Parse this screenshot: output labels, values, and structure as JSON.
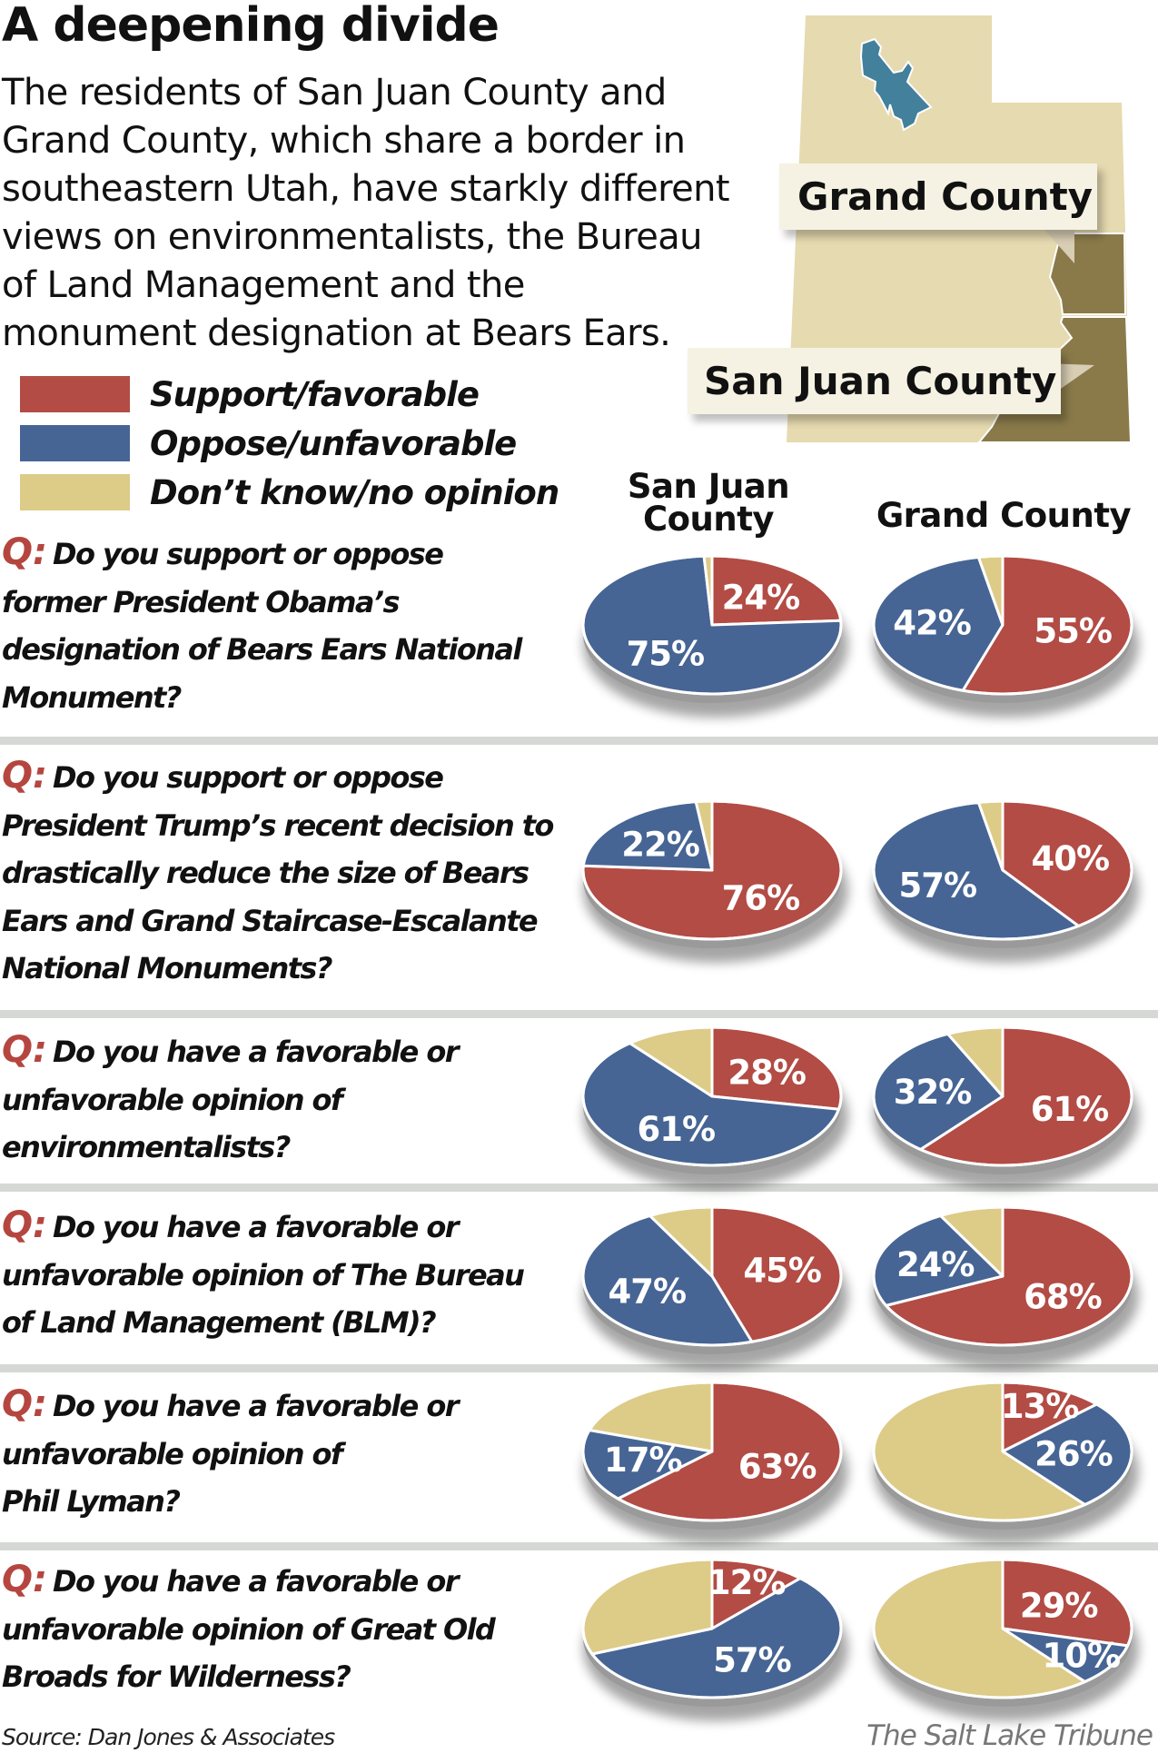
{
  "title": "A deepening divide",
  "intro_lines": [
    "The residents of San Juan County and",
    "Grand County, which share a border in",
    "southeastern Utah, have starkly different",
    "views on environmentalists, the Bureau",
    "of Land Management and the",
    "monument designation at Bears Ears."
  ],
  "map": {
    "labels": {
      "grand": "Grand County",
      "san_juan": "San Juan County"
    },
    "colors": {
      "state": "#e6dab0",
      "counties": "#8a7a4a",
      "salt_lake": "#42809c"
    }
  },
  "legend": [
    {
      "label": "Support/favorable",
      "color": "#b24c45"
    },
    {
      "label": "Oppose/unfavorable",
      "color": "#466594"
    },
    {
      "label": "Don’t know/no opinion",
      "color": "#ddcb88"
    }
  ],
  "columns": {
    "san_juan": "San Juan County",
    "grand": "Grand County"
  },
  "q_prefix": "Q:",
  "chart_data": {
    "type": "pie",
    "series_order": [
      "Support/favorable",
      "Oppose/unfavorable",
      "Don’t know/no opinion"
    ],
    "questions": [
      {
        "lines": [
          "Do you support or oppose",
          "former President Obama’s",
          "designation of Bears Ears National",
          "Monument?"
        ],
        "san_juan": {
          "support": 24,
          "oppose": 75
        },
        "grand": {
          "support": 55,
          "oppose": 42
        }
      },
      {
        "lines": [
          "Do you support or oppose",
          "President Trump’s recent decision to",
          "drastically reduce the size of Bears",
          "Ears and Grand Staircase-Escalante",
          "National Monuments?"
        ],
        "san_juan": {
          "support": 76,
          "oppose": 22
        },
        "grand": {
          "support": 40,
          "oppose": 57
        }
      },
      {
        "lines": [
          "Do you have a favorable or",
          "unfavorable opinion of",
          "environmentalists?"
        ],
        "san_juan": {
          "support": 28,
          "oppose": 61
        },
        "grand": {
          "support": 61,
          "oppose": 32
        }
      },
      {
        "lines": [
          "Do you have a favorable or",
          "unfavorable opinion of The Bureau",
          "of Land Management (BLM)?"
        ],
        "san_juan": {
          "support": 45,
          "oppose": 47
        },
        "grand": {
          "support": 68,
          "oppose": 24
        }
      },
      {
        "lines": [
          "Do you have a favorable or",
          "unfavorable opinion of",
          "Phil Lyman?"
        ],
        "san_juan": {
          "support": 63,
          "oppose": 17
        },
        "grand": {
          "support": 13,
          "oppose": 26
        }
      },
      {
        "lines": [
          "Do you have a favorable or",
          "unfavorable opinion of Great Old",
          "Broads for Wilderness?"
        ],
        "san_juan": {
          "support": 12,
          "oppose": 57
        },
        "grand": {
          "support": 29,
          "oppose": 10
        }
      }
    ]
  },
  "source": "Source: Dan Jones & Associates",
  "credit": "The Salt Lake Tribune"
}
